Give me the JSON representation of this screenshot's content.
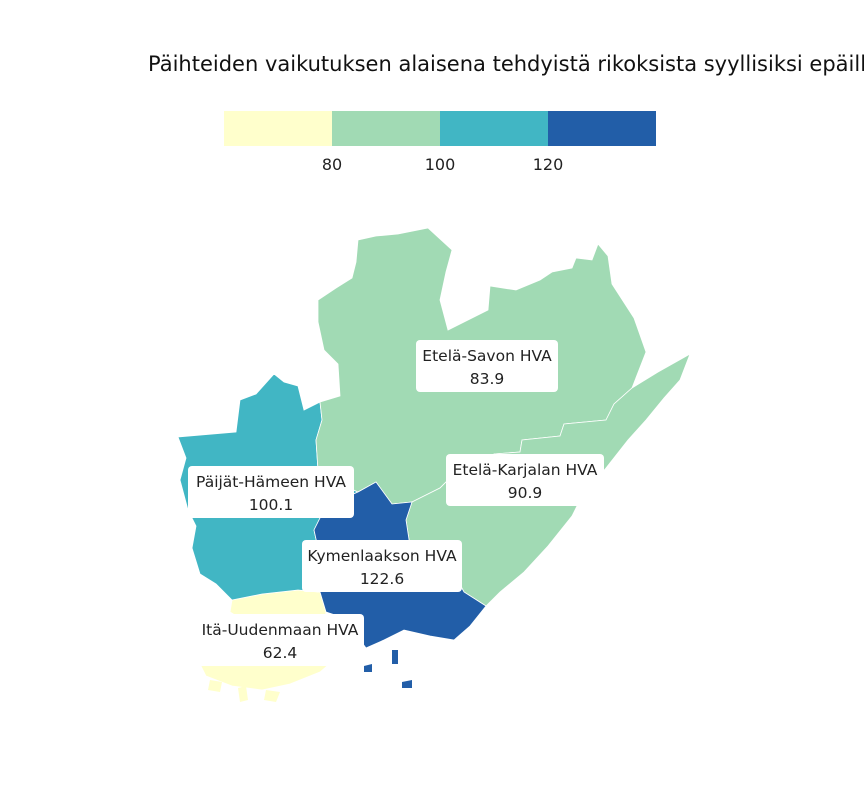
{
  "title": "Päihteiden vaikutuksen alaisena tehdyistä rikoksista syyllisiksi epäilly",
  "legend": {
    "colors": [
      "#ffffcc",
      "#a1dab4",
      "#41b6c4",
      "#225ea8"
    ],
    "ticks": [
      "80",
      "100",
      "120"
    ]
  },
  "regions": [
    {
      "name": "Etelä-Savon HVA",
      "value": "83.9",
      "color": "#a1dab4"
    },
    {
      "name": "Etelä-Karjalan HVA",
      "value": "90.9",
      "color": "#a1dab4"
    },
    {
      "name": "Päijät-Hämeen HVA",
      "value": "100.1",
      "color": "#41b6c4"
    },
    {
      "name": "Kymenlaakson HVA",
      "value": "122.6",
      "color": "#225ea8"
    },
    {
      "name": "Itä-Uudenmaan HVA",
      "value": "62.4",
      "color": "#ffffcc"
    }
  ]
}
